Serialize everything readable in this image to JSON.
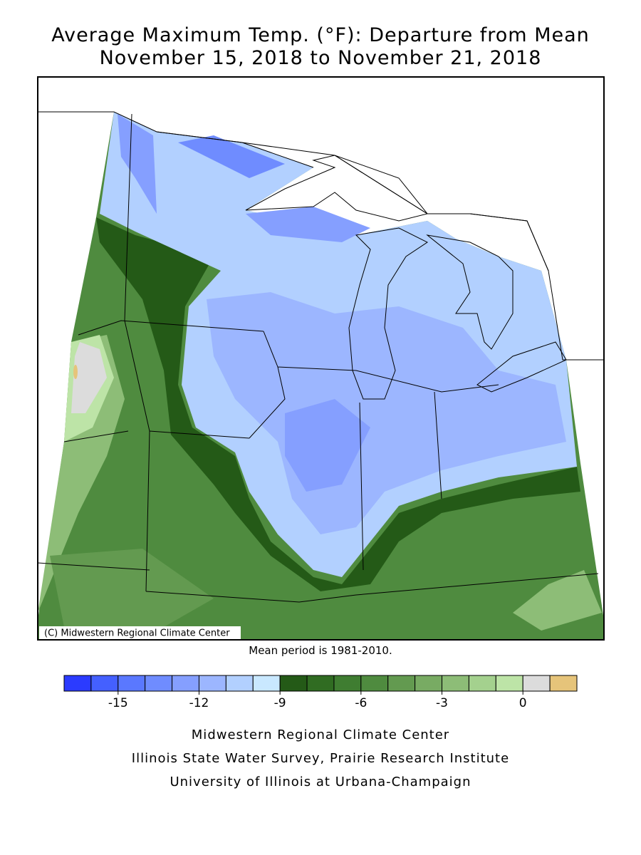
{
  "header": {
    "title_line1": "Average Maximum Temp. (°F): Departure from Mean",
    "title_line2": "November 15, 2018 to November 21, 2018"
  },
  "map": {
    "copyright": "(C) Midwestern Regional Climate Center",
    "note": "Mean period is 1981-2010."
  },
  "colorbar": {
    "levels": [
      -17,
      -16,
      -15,
      -14,
      -13,
      -12,
      -11,
      -10,
      -9,
      -8,
      -7,
      -6,
      -5,
      -4,
      -3,
      -2,
      -1,
      0,
      1,
      2
    ],
    "colors": [
      "#2b3bff",
      "#4460ff",
      "#5a78ff",
      "#6f8cff",
      "#859fff",
      "#9cb6ff",
      "#b2d0ff",
      "#c9e8ff",
      "#245a17",
      "#306c22",
      "#3f7d31",
      "#4f8b3f",
      "#639a50",
      "#78ab63",
      "#8dbd77",
      "#a4d18e",
      "#bde4a7",
      "#dcdcdc",
      "#e6c47a"
    ],
    "ticks": [
      -15,
      -12,
      -9,
      -6,
      -3,
      0
    ]
  },
  "footer": {
    "line1": "Midwestern Regional Climate Center",
    "line2": "Illinois State Water Survey, Prairie Research Institute",
    "line3": "University of Illinois at Urbana-Champaign"
  }
}
